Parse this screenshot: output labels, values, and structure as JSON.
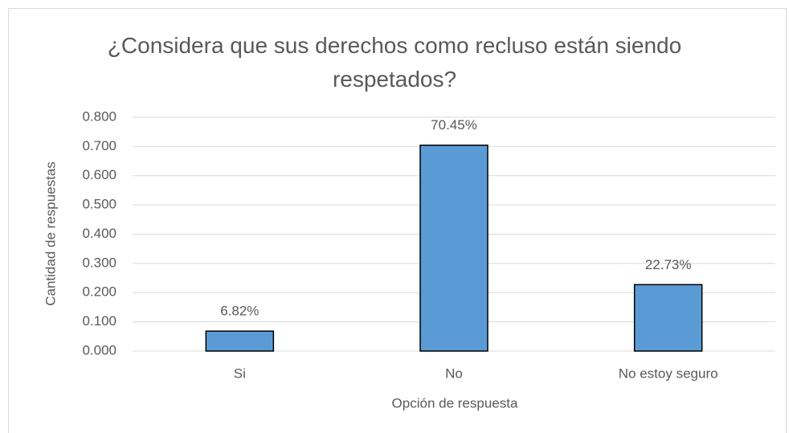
{
  "chart_data": {
    "type": "bar",
    "title": "¿Considera que sus derechos como recluso están siendo respetados?",
    "y_label": "Cantidad de respuestas",
    "x_label": "Opción de respuesta",
    "categories": [
      "Si",
      "No",
      "No estoy seguro"
    ],
    "values": [
      0.0682,
      0.7045,
      0.2273
    ],
    "value_labels": [
      "6.82%",
      "70.45%",
      "22.73%"
    ],
    "color": "#5b9bd5",
    "ylim": [
      0,
      0.8
    ],
    "yticks": [
      {
        "value": 0,
        "label": "0.000"
      },
      {
        "value": 0.1,
        "label": "0.100"
      },
      {
        "value": 0.2,
        "label": "0.200"
      },
      {
        "value": 0.3,
        "label": "0.300"
      },
      {
        "value": 0.4,
        "label": "0.400"
      },
      {
        "value": 0.5,
        "label": "0.500"
      },
      {
        "value": 0.6,
        "label": "0.600"
      },
      {
        "value": 0.7,
        "label": "0.700"
      },
      {
        "value": 0.8,
        "label": "0.800"
      }
    ],
    "grid": true
  }
}
